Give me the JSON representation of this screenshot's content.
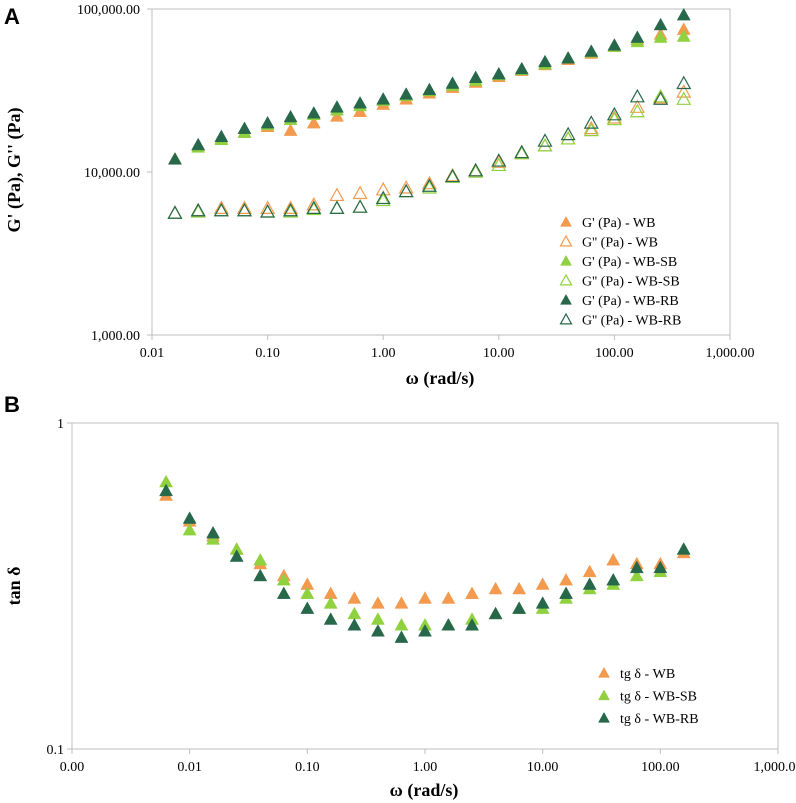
{
  "chart_data": [
    {
      "panel": "A",
      "type": "scatter",
      "xscale": "log",
      "yscale": "log",
      "xlabel": "ω (rad/s)",
      "ylabel": "G' (Pa), G'' (Pa)",
      "xlim": [
        0.01,
        1000
      ],
      "ylim": [
        1000,
        100000
      ],
      "x_ticks": [
        0.01,
        0.1,
        1,
        10,
        100,
        1000
      ],
      "x_tick_labels": [
        "0.01",
        "0.10",
        "1.00",
        "10.00",
        "100.00",
        "1,000.00"
      ],
      "y_ticks": [
        1000,
        10000,
        100000
      ],
      "y_tick_labels": [
        "1,000.00",
        "10,000.00",
        "100,000.00"
      ],
      "legend_position": "bottom-right",
      "x": [
        0.0158,
        0.0251,
        0.0398,
        0.0631,
        0.1,
        0.158,
        0.251,
        0.398,
        0.631,
        1.0,
        1.58,
        2.51,
        3.98,
        6.31,
        10.0,
        15.8,
        25.1,
        39.8,
        63.1,
        100,
        158,
        251,
        398
      ],
      "series": [
        {
          "name": "G' (Pa) - WB",
          "marker": "filled",
          "color": "#f39a4e",
          "values": [
            12000,
            14500,
            16000,
            17500,
            19000,
            18000,
            20000,
            22000,
            23500,
            26000,
            28000,
            30500,
            33000,
            35500,
            38500,
            42000,
            45500,
            49000,
            53500,
            59000,
            65000,
            70000,
            75000
          ]
        },
        {
          "name": "G'' (Pa) - WB",
          "marker": "hollow",
          "color": "#f39a4e",
          "values": [
            5600,
            5800,
            6000,
            6000,
            6000,
            6000,
            6300,
            7200,
            7400,
            7800,
            8000,
            8500,
            9500,
            10200,
            11500,
            13000,
            14500,
            16000,
            18500,
            21500,
            25000,
            28500,
            31000
          ]
        },
        {
          "name": "G' (Pa) - WB-SB",
          "marker": "filled",
          "color": "#8fd13f",
          "values": [
            12000,
            14200,
            15800,
            17500,
            19500,
            21000,
            22500,
            24000,
            25500,
            27500,
            29500,
            31500,
            34000,
            36500,
            39500,
            42500,
            46000,
            50000,
            54500,
            59000,
            63000,
            67000,
            68000
          ]
        },
        {
          "name": "G'' (Pa) - WB-SB",
          "marker": "hollow",
          "color": "#8fd13f",
          "values": [
            5600,
            5700,
            5800,
            5800,
            5700,
            5700,
            5900,
            6000,
            6100,
            6700,
            7600,
            8000,
            9300,
            10000,
            11000,
            13000,
            14500,
            16000,
            18000,
            21000,
            23500,
            29000,
            28000
          ]
        },
        {
          "name": "G' (Pa) - WB-RB",
          "marker": "filled",
          "color": "#27684b",
          "values": [
            12000,
            14700,
            16500,
            18500,
            20000,
            21800,
            23000,
            25000,
            26500,
            28000,
            30000,
            32000,
            35000,
            38000,
            40000,
            43000,
            47500,
            50000,
            55000,
            60000,
            67000,
            80000,
            92000
          ]
        },
        {
          "name": "G'' (Pa) - WB-RB",
          "marker": "hollow",
          "color": "#27684b",
          "values": [
            5600,
            5800,
            5800,
            5800,
            5700,
            5800,
            6000,
            6000,
            6100,
            6900,
            7600,
            8200,
            9400,
            10200,
            11700,
            13200,
            15500,
            17000,
            20000,
            22500,
            29000,
            28000,
            35000
          ]
        }
      ]
    },
    {
      "panel": "B",
      "type": "scatter",
      "xscale": "log",
      "yscale": "log",
      "xlabel": "ω (rad/s)",
      "ylabel": "tan δ",
      "xlim": [
        0.001,
        1000
      ],
      "ylim": [
        0.1,
        1
      ],
      "x_ticks": [
        0.001,
        0.01,
        0.1,
        1,
        10,
        100,
        1000
      ],
      "x_tick_labels": [
        "0.00",
        "0.01",
        "0.10",
        "1.00",
        "10.00",
        "100.00",
        "1,000.00"
      ],
      "y_ticks": [
        0.1,
        1
      ],
      "y_tick_labels": [
        "0.1",
        "1"
      ],
      "legend_position": "bottom-right",
      "x": [
        0.0063,
        0.01,
        0.0158,
        0.0251,
        0.0398,
        0.0631,
        0.1,
        0.158,
        0.251,
        0.398,
        0.631,
        1.0,
        1.58,
        2.51,
        3.98,
        6.31,
        10.0,
        15.8,
        25.1,
        39.8,
        63.1,
        100,
        158
      ],
      "series": [
        {
          "name": "tg δ - WB",
          "marker": "filled",
          "color": "#f39a4e",
          "values": [
            0.6,
            0.5,
            0.45,
            0.41,
            0.37,
            0.34,
            0.32,
            0.3,
            0.29,
            0.28,
            0.28,
            0.29,
            0.29,
            0.3,
            0.31,
            0.31,
            0.32,
            0.33,
            0.35,
            0.38,
            0.37,
            0.37,
            0.4
          ]
        },
        {
          "name": "tg δ - WB-SB",
          "marker": "filled",
          "color": "#8fd13f",
          "values": [
            0.66,
            0.47,
            0.44,
            0.41,
            0.38,
            0.33,
            0.3,
            0.28,
            0.26,
            0.25,
            0.24,
            0.24,
            0.24,
            0.25,
            0.26,
            0.27,
            0.27,
            0.29,
            0.31,
            0.32,
            0.34,
            0.35,
            0.41
          ]
        },
        {
          "name": "tg δ - WB-RB",
          "marker": "filled",
          "color": "#27684b",
          "values": [
            0.62,
            0.51,
            0.46,
            0.39,
            0.34,
            0.3,
            0.27,
            0.25,
            0.24,
            0.23,
            0.22,
            0.23,
            0.24,
            0.24,
            0.26,
            0.27,
            0.28,
            0.3,
            0.32,
            0.33,
            0.36,
            0.36,
            0.41
          ]
        }
      ]
    }
  ]
}
